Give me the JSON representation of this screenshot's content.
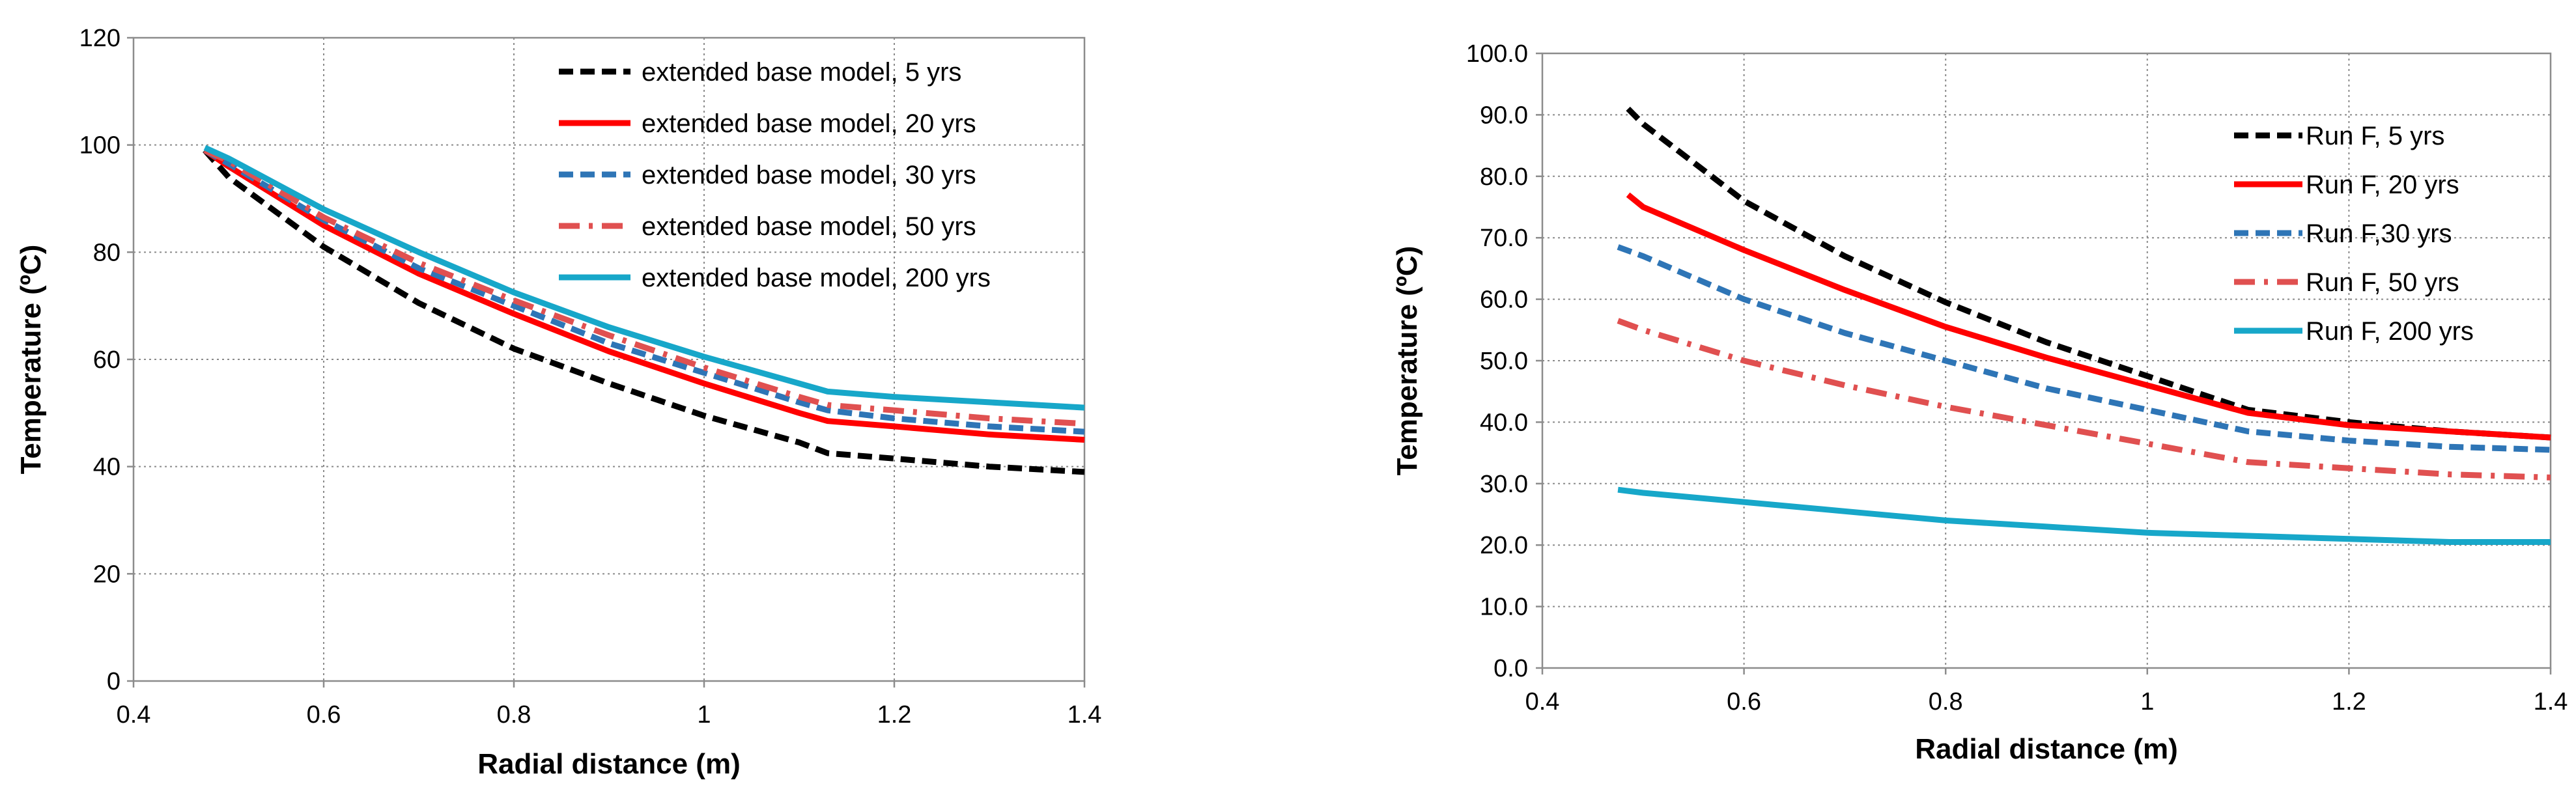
{
  "chart_data": [
    {
      "type": "line",
      "title": "",
      "xlabel": "Radial distance (m)",
      "ylabel": "Temperature (ºC)",
      "xlim": [
        0.4,
        1.4
      ],
      "ylim": [
        0,
        120
      ],
      "xticks": [
        0.4,
        0.6,
        0.8,
        1,
        1.2,
        1.4
      ],
      "yticks": [
        0,
        20,
        40,
        60,
        80,
        100,
        120
      ],
      "xtick_labels": [
        "0.4",
        "0.6",
        "0.8",
        "1",
        "1.2",
        "1.4"
      ],
      "ytick_labels": [
        "0",
        "20",
        "40",
        "60",
        "80",
        "100",
        "120"
      ],
      "grid": true,
      "legend_position": "top-right",
      "series": [
        {
          "name": "extended base model, 5 yrs",
          "color": "#000000",
          "dash": "dash",
          "x": [
            0.475,
            0.5,
            0.6,
            0.7,
            0.8,
            0.9,
            1.0,
            1.1,
            1.13,
            1.2,
            1.3,
            1.4
          ],
          "y": [
            99,
            94,
            81,
            70.5,
            62,
            55.5,
            49.5,
            44.5,
            42.5,
            41.5,
            40,
            39
          ]
        },
        {
          "name": "extended base model, 20 yrs",
          "color": "#ff0000",
          "dash": "solid",
          "x": [
            0.475,
            0.5,
            0.6,
            0.7,
            0.8,
            0.9,
            1.0,
            1.1,
            1.13,
            1.2,
            1.3,
            1.4
          ],
          "y": [
            99,
            96,
            85,
            76,
            68.5,
            61.5,
            55.5,
            50,
            48.5,
            47.5,
            46,
            45
          ]
        },
        {
          "name": "extended base model, 30 yrs",
          "color": "#2e75b6",
          "dash": "dash",
          "x": [
            0.475,
            0.5,
            0.6,
            0.7,
            0.8,
            0.9,
            1.0,
            1.1,
            1.13,
            1.2,
            1.3,
            1.4
          ],
          "y": [
            99,
            96.5,
            86,
            77,
            70,
            63,
            57.5,
            52,
            50.5,
            49,
            47.5,
            46.5
          ]
        },
        {
          "name": "extended base model, 50 yrs",
          "color": "#e05050",
          "dash": "dashdot",
          "x": [
            0.475,
            0.5,
            0.6,
            0.7,
            0.8,
            0.9,
            1.0,
            1.1,
            1.13,
            1.2,
            1.3,
            1.4
          ],
          "y": [
            99,
            97,
            86.5,
            78,
            71,
            64.5,
            58.5,
            53,
            51.5,
            50.5,
            49,
            48
          ]
        },
        {
          "name": "extended base model, 200 yrs",
          "color": "#17a7c9",
          "dash": "solid",
          "x": [
            0.475,
            0.5,
            0.6,
            0.7,
            0.8,
            0.9,
            1.0,
            1.1,
            1.13,
            1.2,
            1.3,
            1.4
          ],
          "y": [
            99.5,
            97.5,
            88,
            80,
            72.5,
            66,
            60.5,
            55.5,
            54,
            53,
            52,
            51
          ]
        }
      ]
    },
    {
      "type": "line",
      "title": "",
      "xlabel": "Radial distance (m)",
      "ylabel": "Temperature (ºC)",
      "xlim": [
        0.4,
        1.4
      ],
      "ylim": [
        0,
        100
      ],
      "xticks": [
        0.4,
        0.6,
        0.8,
        1,
        1.2,
        1.4
      ],
      "yticks": [
        0,
        10,
        20,
        30,
        40,
        50,
        60,
        70,
        80,
        90,
        100
      ],
      "xtick_labels": [
        "0.4",
        "0.6",
        "0.8",
        "1",
        "1.2",
        "1.4"
      ],
      "ytick_labels": [
        "0.0",
        "10.0",
        "20.0",
        "30.0",
        "40.0",
        "50.0",
        "60.0",
        "70.0",
        "80.0",
        "90.0",
        "100.0"
      ],
      "grid": true,
      "legend_position": "top-right",
      "series": [
        {
          "name": "Run F, 5 yrs",
          "color": "#000000",
          "dash": "dash",
          "x": [
            0.485,
            0.5,
            0.6,
            0.7,
            0.8,
            0.9,
            1.0,
            1.1,
            1.2,
            1.3,
            1.4
          ],
          "y": [
            91,
            88.5,
            76,
            67,
            59.5,
            53,
            47.5,
            42,
            40,
            38.5,
            37.5
          ]
        },
        {
          "name": "Run F, 20 yrs",
          "color": "#ff0000",
          "dash": "solid",
          "x": [
            0.485,
            0.5,
            0.6,
            0.7,
            0.8,
            0.9,
            1.0,
            1.1,
            1.2,
            1.3,
            1.4
          ],
          "y": [
            77,
            75,
            68,
            61.5,
            55.5,
            50.5,
            46,
            41.5,
            39.5,
            38.5,
            37.5
          ]
        },
        {
          "name": "Run F,30 yrs",
          "color": "#2e75b6",
          "dash": "dash",
          "x": [
            0.475,
            0.5,
            0.6,
            0.7,
            0.8,
            0.9,
            1.0,
            1.1,
            1.2,
            1.3,
            1.4
          ],
          "y": [
            68.5,
            67,
            60,
            54.5,
            50,
            45.5,
            42,
            38.5,
            37,
            36,
            35.5
          ]
        },
        {
          "name": "Run F, 50 yrs",
          "color": "#e05050",
          "dash": "dashdot",
          "x": [
            0.475,
            0.5,
            0.6,
            0.7,
            0.8,
            0.9,
            1.0,
            1.1,
            1.2,
            1.3,
            1.4
          ],
          "y": [
            56.5,
            55,
            50,
            46,
            42.5,
            39.5,
            36.5,
            33.5,
            32.5,
            31.5,
            31
          ]
        },
        {
          "name": "Run F, 200 yrs",
          "color": "#17a7c9",
          "dash": "solid",
          "x": [
            0.475,
            0.5,
            0.6,
            0.7,
            0.8,
            0.9,
            1.0,
            1.1,
            1.2,
            1.3,
            1.4
          ],
          "y": [
            29,
            28.5,
            27,
            25.5,
            24,
            23,
            22,
            21.5,
            21,
            20.5,
            20.5
          ]
        }
      ]
    }
  ]
}
